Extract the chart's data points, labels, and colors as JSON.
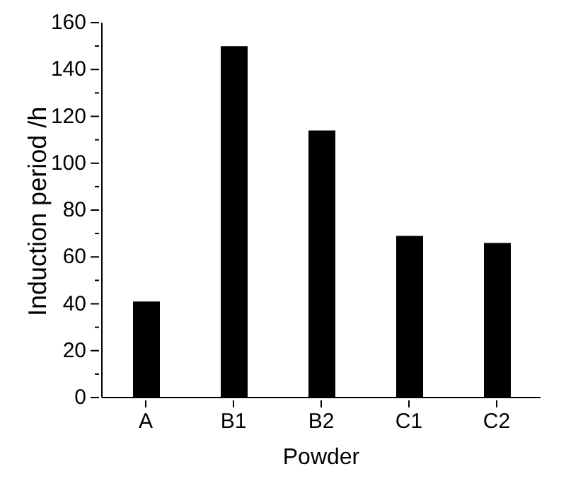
{
  "chart_data": {
    "type": "bar",
    "xlabel": "Powder",
    "ylabel": "Induction period /h",
    "categories": [
      "A",
      "B1",
      "B2",
      "C1",
      "C2"
    ],
    "values": [
      41,
      150,
      114,
      69,
      66
    ],
    "color": "#000000",
    "ylim": [
      0,
      160
    ],
    "yticks": [
      0,
      {
        "value": 10,
        "label": null
      },
      20,
      {
        "value": 30,
        "label": null
      },
      40,
      {
        "value": 50,
        "label": null
      },
      60,
      {
        "value": 70,
        "label": null
      },
      80,
      {
        "value": 90,
        "label": null
      },
      100,
      {
        "value": 110,
        "label": null
      },
      120,
      {
        "value": 130,
        "label": null
      },
      140,
      {
        "value": 150,
        "label": null
      },
      160
    ],
    "grid": false,
    "legend": false
  }
}
